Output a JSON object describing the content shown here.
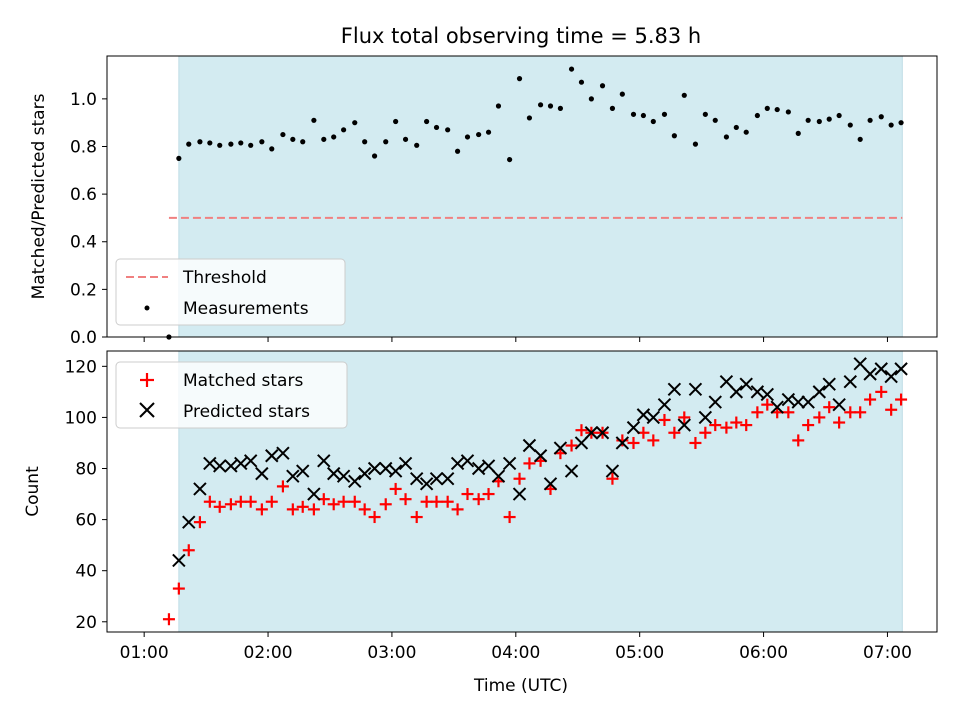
{
  "chart_data": {
    "title": "Flux total observing time = 5.83 h",
    "shaded_band_color": "#d3ebf1",
    "x_tick_labels": [
      "01:00",
      "02:00",
      "03:00",
      "04:00",
      "05:00",
      "06:00",
      "07:00"
    ],
    "x_ticks_hours": [
      1,
      2,
      3,
      4,
      5,
      6,
      7
    ],
    "xlabel": "Time (UTC)",
    "xlim_hours": [
      0.7,
      7.4
    ],
    "shaded_span_hours": [
      1.28,
      7.12
    ],
    "panels": [
      {
        "type": "scatter",
        "ylabel": "Matched/Predicted stars",
        "ylim": [
          0,
          1.18
        ],
        "y_ticks": [
          "0.0",
          "0.2",
          "0.4",
          "0.6",
          "0.8",
          "1.0"
        ],
        "legend_position": "lower-left",
        "legend": [
          "Threshold",
          "Measurements"
        ],
        "threshold": {
          "name": "Threshold",
          "value": 0.5,
          "color": "#f08080",
          "x_range_hours": [
            1.2,
            7.12
          ]
        },
        "measurements": {
          "name": "Measurements",
          "color": "#000000",
          "x_hours": [
            1.2,
            1.28,
            1.36,
            1.45,
            1.53,
            1.61,
            1.7,
            1.78,
            1.86,
            1.95,
            2.03,
            2.12,
            2.2,
            2.28,
            2.37,
            2.45,
            2.53,
            2.61,
            2.7,
            2.78,
            2.86,
            2.95,
            3.03,
            3.11,
            3.2,
            3.28,
            3.36,
            3.45,
            3.53,
            3.61,
            3.7,
            3.78,
            3.86,
            3.95,
            4.03,
            4.11,
            4.2,
            4.28,
            4.36,
            4.45,
            4.53,
            4.61,
            4.7,
            4.78,
            4.86,
            4.95,
            5.03,
            5.11,
            5.2,
            5.28,
            5.36,
            5.45,
            5.53,
            5.61,
            5.7,
            5.78,
            5.86,
            5.95,
            6.03,
            6.11,
            6.2,
            6.28,
            6.36,
            6.45,
            6.53,
            6.61,
            6.7,
            6.78,
            6.86,
            6.95,
            7.03,
            7.11
          ],
          "y": [
            0.0,
            0.75,
            0.81,
            0.82,
            0.815,
            0.805,
            0.81,
            0.815,
            0.805,
            0.82,
            0.79,
            0.85,
            0.83,
            0.82,
            0.91,
            0.83,
            0.84,
            0.87,
            0.9,
            0.82,
            0.76,
            0.82,
            0.905,
            0.83,
            0.805,
            0.905,
            0.88,
            0.87,
            0.78,
            0.84,
            0.85,
            0.86,
            0.97,
            0.745,
            1.085,
            0.92,
            0.975,
            0.97,
            0.96,
            1.125,
            1.07,
            1.0,
            1.055,
            0.96,
            1.02,
            0.935,
            0.93,
            0.905,
            0.935,
            0.845,
            1.015,
            0.81,
            0.935,
            0.91,
            0.84,
            0.88,
            0.86,
            0.93,
            0.96,
            0.955,
            0.945,
            0.855,
            0.91,
            0.905,
            0.915,
            0.93,
            0.89,
            0.83,
            0.91,
            0.925,
            0.89,
            0.9
          ]
        }
      },
      {
        "type": "scatter",
        "ylabel": "Count",
        "ylim": [
          16,
          126
        ],
        "y_ticks": [
          "20",
          "40",
          "60",
          "80",
          "100",
          "120"
        ],
        "legend_position": "upper-left",
        "legend": [
          "Matched stars",
          "Predicted stars"
        ],
        "series": [
          {
            "name": "Matched stars",
            "marker": "plus",
            "color": "#ff0000",
            "x_hours": [
              1.2,
              1.28,
              1.36,
              1.45,
              1.53,
              1.61,
              1.7,
              1.78,
              1.86,
              1.95,
              2.03,
              2.12,
              2.2,
              2.28,
              2.37,
              2.45,
              2.53,
              2.61,
              2.7,
              2.78,
              2.86,
              2.95,
              3.03,
              3.11,
              3.2,
              3.28,
              3.36,
              3.45,
              3.53,
              3.61,
              3.7,
              3.78,
              3.86,
              3.95,
              4.03,
              4.11,
              4.2,
              4.28,
              4.36,
              4.45,
              4.53,
              4.61,
              4.7,
              4.78,
              4.86,
              4.95,
              5.03,
              5.11,
              5.2,
              5.28,
              5.36,
              5.45,
              5.53,
              5.61,
              5.7,
              5.78,
              5.86,
              5.95,
              6.03,
              6.11,
              6.2,
              6.28,
              6.36,
              6.45,
              6.53,
              6.61,
              6.7,
              6.78,
              6.86,
              6.95,
              7.03,
              7.11
            ],
            "values": [
              21,
              33,
              48,
              59,
              67,
              65,
              66,
              67,
              67,
              64,
              67,
              73,
              64,
              65,
              64,
              68,
              66,
              67,
              67,
              64,
              61,
              66,
              72,
              68,
              61,
              67,
              67,
              67,
              64,
              70,
              68,
              70,
              75,
              61,
              76,
              82,
              83,
              72,
              86,
              89,
              95,
              94,
              94,
              76,
              91,
              90,
              94,
              91,
              99,
              94,
              100,
              90,
              94,
              97,
              96,
              98,
              97,
              102,
              105,
              102,
              102,
              91,
              97,
              100,
              104,
              98,
              102,
              102,
              107,
              110,
              103,
              107
            ]
          },
          {
            "name": "Predicted stars",
            "marker": "x",
            "color": "#000000",
            "x_hours": [
              1.28,
              1.36,
              1.45,
              1.53,
              1.61,
              1.7,
              1.78,
              1.86,
              1.95,
              2.03,
              2.12,
              2.2,
              2.28,
              2.37,
              2.45,
              2.53,
              2.61,
              2.7,
              2.78,
              2.86,
              2.95,
              3.03,
              3.11,
              3.2,
              3.28,
              3.36,
              3.45,
              3.53,
              3.61,
              3.7,
              3.78,
              3.86,
              3.95,
              4.03,
              4.11,
              4.2,
              4.28,
              4.36,
              4.45,
              4.53,
              4.61,
              4.7,
              4.78,
              4.86,
              4.95,
              5.03,
              5.11,
              5.2,
              5.28,
              5.36,
              5.45,
              5.53,
              5.61,
              5.7,
              5.78,
              5.86,
              5.95,
              6.03,
              6.11,
              6.2,
              6.28,
              6.36,
              6.45,
              6.53,
              6.61,
              6.7,
              6.78,
              6.86,
              6.95,
              7.03,
              7.11
            ],
            "values": [
              44,
              59,
              72,
              82,
              81,
              81,
              82,
              83,
              78,
              85,
              86,
              77,
              79,
              70,
              83,
              78,
              77,
              75,
              78,
              80,
              80,
              79,
              82,
              76,
              74,
              76,
              76,
              82,
              83,
              80,
              81,
              77,
              82,
              70,
              89,
              85,
              74,
              88,
              79,
              90,
              94,
              94,
              79,
              90,
              96,
              101,
              100,
              105,
              111,
              97,
              111,
              100,
              106,
              114,
              110,
              113,
              110,
              109,
              104,
              107,
              106,
              106,
              110,
              113,
              105,
              114,
              121,
              117,
              119,
              116,
              119
            ]
          }
        ]
      }
    ]
  }
}
